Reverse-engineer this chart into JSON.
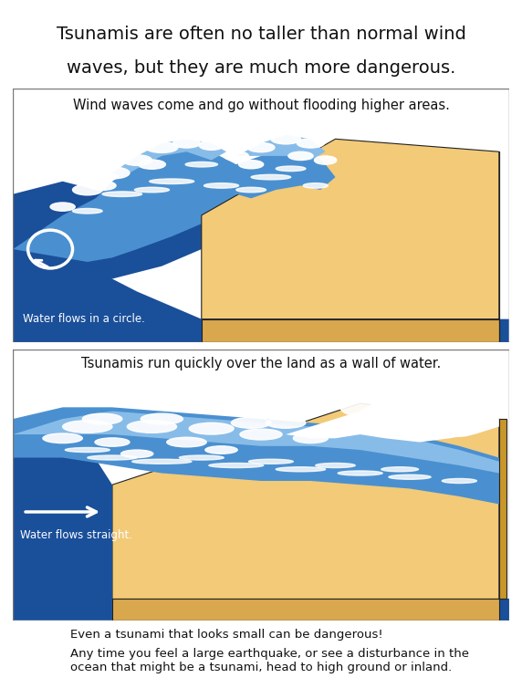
{
  "title_line1": "Tsunamis are often no taller than normal wind",
  "title_line2": "waves, but they are much more dangerous.",
  "panel1_title": "Wind waves come and go without flooding higher areas.",
  "panel1_label": "Water flows in a circle.",
  "panel2_title": "Tsunamis run quickly over the land as a wall of water.",
  "panel2_label": "Water flows straight.",
  "footer1": "Even a tsunami that looks small can be dangerous!",
  "footer2": "Any time you feel a large earthquake, or see a disturbance in the\nocean that might be a tsunami, head to high ground or inland.",
  "bg_color": "#ffffff",
  "panel_bg": "#aab8a8",
  "sand_top": "#f2ca78",
  "sand_front": "#d9a84e",
  "sand_side": "#c8962a",
  "ocean_dark": "#1a4f9a",
  "ocean_mid": "#4a90d0",
  "ocean_light": "#88bce8",
  "wave_white": "#ffffff",
  "title_fontsize": 14,
  "panel_title_fontsize": 10.5,
  "label_fontsize": 8.5,
  "footer_fontsize": 9.5
}
